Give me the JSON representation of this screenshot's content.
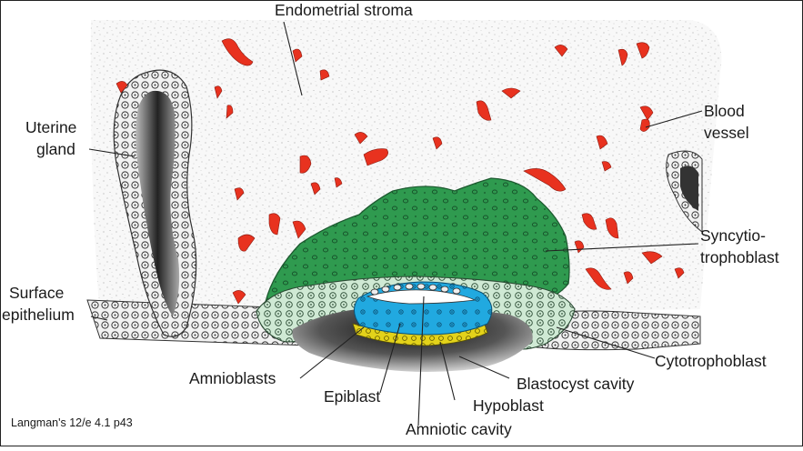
{
  "labels": {
    "endometrial_stroma": "Endometrial stroma",
    "uterine_gland_line1": "Uterine",
    "uterine_gland_line2": "gland",
    "blood_vessel_line1": "Blood",
    "blood_vessel_line2": "vessel",
    "syncytio_line1": "Syncytio-",
    "syncytio_line2": "trophoblast",
    "surface_line1": "Surface",
    "surface_line2": "epithelium",
    "cytotrophoblast": "Cytotrophoblast",
    "amnioblasts": "Amnioblasts",
    "blastocyst_cavity": "Blastocyst cavity",
    "epiblast": "Epiblast",
    "hypoblast": "Hypoblast",
    "amniotic_cavity": "Amniotic cavity"
  },
  "citation": "Langman's 12/e 4.1 p43",
  "colors": {
    "syncytiotrophoblast": "#2f9a4f",
    "cytotrophoblast": "#cfe9d4",
    "epiblast": "#21a9e0",
    "hypoblast": "#e3d21a",
    "blood_vessel": "#e8321f",
    "stroma_background": "#f7f7f7",
    "line": "#222222"
  }
}
